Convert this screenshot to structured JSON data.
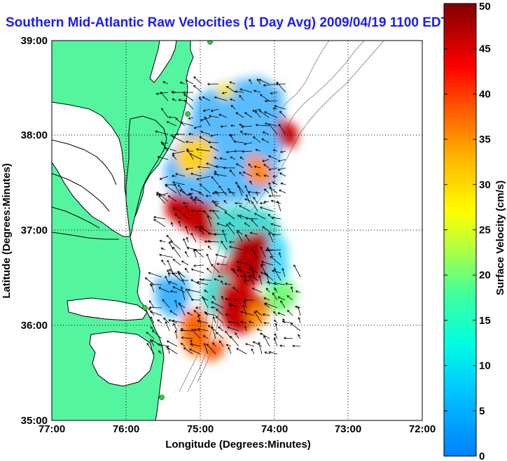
{
  "title": "Southern Mid-Atlantic Raw Velocities (1 Day Avg) 2009/04/19 1100 EDT",
  "x_axis": {
    "label": "Longitude (Degrees:Minutes)",
    "ticks": [
      "77:00",
      "76:00",
      "75:00",
      "74:00",
      "73:00",
      "72:00"
    ]
  },
  "y_axis": {
    "label": "Latitude (Degrees:Minutes)",
    "ticks": [
      "39:00",
      "38:00",
      "37:00",
      "36:00",
      "35:00"
    ]
  },
  "colorbar": {
    "label": "Surface Velocity (cm/s)",
    "ticks": [
      "50",
      "45",
      "40",
      "35",
      "30",
      "25",
      "20",
      "15",
      "10",
      "5",
      "0"
    ],
    "min": 0,
    "max": 50,
    "colormap": "jet"
  },
  "map": {
    "lon_range": [
      -77,
      -72
    ],
    "lat_range": [
      35,
      39
    ],
    "land_color": "#55f5a0",
    "grid": true,
    "grid_style": "dotted",
    "station_color": "#33cc33",
    "bathymetry_color": "#999999"
  }
}
